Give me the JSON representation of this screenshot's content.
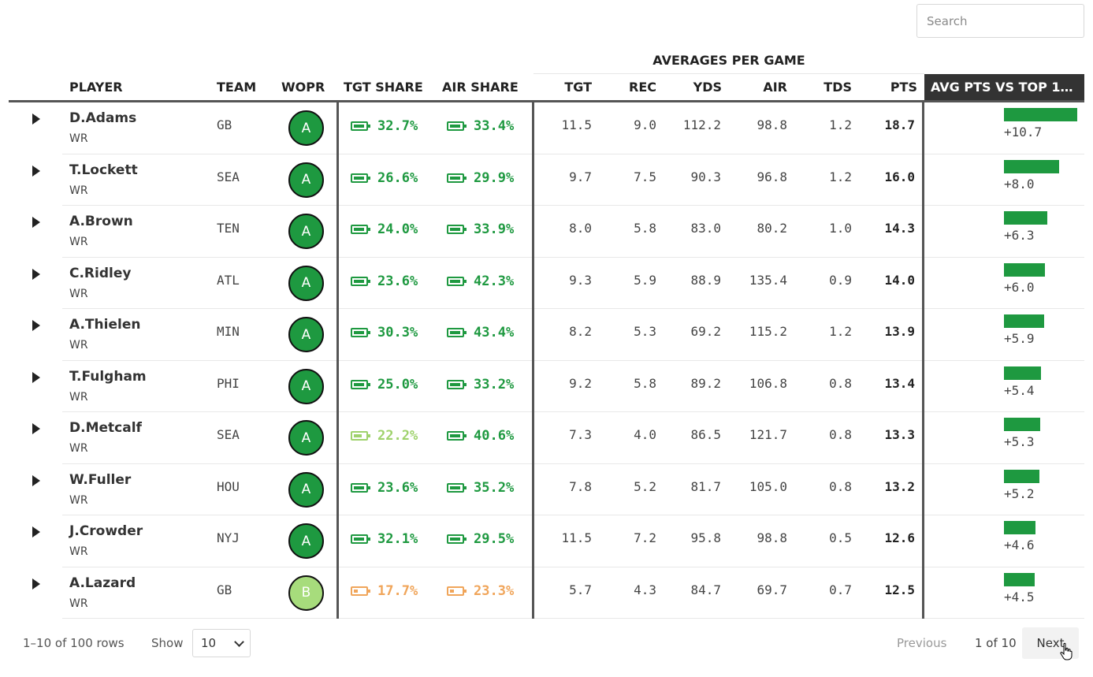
{
  "search": {
    "placeholder": "Search"
  },
  "group_header": "AVERAGES PER GAME",
  "columns": {
    "player": "PLAYER",
    "team": "TEAM",
    "wopr": "WOPR",
    "tgt_share": "TGT SHARE",
    "air_share": "AIR SHARE",
    "tgt": "TGT",
    "rec": "REC",
    "yds": "YDS",
    "air": "AIR",
    "tds": "TDS",
    "pts": "PTS",
    "avg_vs_top": "AVG PTS VS TOP 1…"
  },
  "colors": {
    "green": "#1e9940",
    "light_green": "#9fd26c",
    "orange": "#f0a55a",
    "grade_a": "#1e9940",
    "grade_b": "#a7dc7c"
  },
  "rows": [
    {
      "name": "D.Adams",
      "pos": "WR",
      "team": "GB",
      "grade": "A",
      "tgt_share": "32.7%",
      "tgt_level": 0.95,
      "tgt_color": "green",
      "air_share": "33.4%",
      "air_level": 0.95,
      "air_color": "green",
      "tgt": "11.5",
      "rec": "9.0",
      "yds": "112.2",
      "air": "98.8",
      "tds": "1.2",
      "pts": "18.7",
      "diff": 10.7,
      "diff_label": "+10.7"
    },
    {
      "name": "T.Lockett",
      "pos": "WR",
      "team": "SEA",
      "grade": "A",
      "tgt_share": "26.6%",
      "tgt_level": 0.95,
      "tgt_color": "green",
      "air_share": "29.9%",
      "air_level": 0.95,
      "air_color": "green",
      "tgt": "9.7",
      "rec": "7.5",
      "yds": "90.3",
      "air": "96.8",
      "tds": "1.2",
      "pts": "16.0",
      "diff": 8.0,
      "diff_label": "+8.0"
    },
    {
      "name": "A.Brown",
      "pos": "WR",
      "team": "TEN",
      "grade": "A",
      "tgt_share": "24.0%",
      "tgt_level": 0.95,
      "tgt_color": "green",
      "air_share": "33.9%",
      "air_level": 0.95,
      "air_color": "green",
      "tgt": "8.0",
      "rec": "5.8",
      "yds": "83.0",
      "air": "80.2",
      "tds": "1.0",
      "pts": "14.3",
      "diff": 6.3,
      "diff_label": "+6.3"
    },
    {
      "name": "C.Ridley",
      "pos": "WR",
      "team": "ATL",
      "grade": "A",
      "tgt_share": "23.6%",
      "tgt_level": 0.95,
      "tgt_color": "green",
      "air_share": "42.3%",
      "air_level": 0.95,
      "air_color": "green",
      "tgt": "9.3",
      "rec": "5.9",
      "yds": "88.9",
      "air": "135.4",
      "tds": "0.9",
      "pts": "14.0",
      "diff": 6.0,
      "diff_label": "+6.0"
    },
    {
      "name": "A.Thielen",
      "pos": "WR",
      "team": "MIN",
      "grade": "A",
      "tgt_share": "30.3%",
      "tgt_level": 0.95,
      "tgt_color": "green",
      "air_share": "43.4%",
      "air_level": 0.95,
      "air_color": "green",
      "tgt": "8.2",
      "rec": "5.3",
      "yds": "69.2",
      "air": "115.2",
      "tds": "1.2",
      "pts": "13.9",
      "diff": 5.9,
      "diff_label": "+5.9"
    },
    {
      "name": "T.Fulgham",
      "pos": "WR",
      "team": "PHI",
      "grade": "A",
      "tgt_share": "25.0%",
      "tgt_level": 0.95,
      "tgt_color": "green",
      "air_share": "33.2%",
      "air_level": 0.95,
      "air_color": "green",
      "tgt": "9.2",
      "rec": "5.8",
      "yds": "89.2",
      "air": "106.8",
      "tds": "0.8",
      "pts": "13.4",
      "diff": 5.4,
      "diff_label": "+5.4"
    },
    {
      "name": "D.Metcalf",
      "pos": "WR",
      "team": "SEA",
      "grade": "A",
      "tgt_share": "22.2%",
      "tgt_level": 0.7,
      "tgt_color": "light_green",
      "air_share": "40.6%",
      "air_level": 0.95,
      "air_color": "green",
      "tgt": "7.3",
      "rec": "4.0",
      "yds": "86.5",
      "air": "121.7",
      "tds": "0.8",
      "pts": "13.3",
      "diff": 5.3,
      "diff_label": "+5.3"
    },
    {
      "name": "W.Fuller",
      "pos": "WR",
      "team": "HOU",
      "grade": "A",
      "tgt_share": "23.6%",
      "tgt_level": 0.95,
      "tgt_color": "green",
      "air_share": "35.2%",
      "air_level": 0.95,
      "air_color": "green",
      "tgt": "7.8",
      "rec": "5.2",
      "yds": "81.7",
      "air": "105.0",
      "tds": "0.8",
      "pts": "13.2",
      "diff": 5.2,
      "diff_label": "+5.2"
    },
    {
      "name": "J.Crowder",
      "pos": "WR",
      "team": "NYJ",
      "grade": "A",
      "tgt_share": "32.1%",
      "tgt_level": 0.95,
      "tgt_color": "green",
      "air_share": "29.5%",
      "air_level": 0.95,
      "air_color": "green",
      "tgt": "11.5",
      "rec": "7.2",
      "yds": "95.8",
      "air": "98.8",
      "tds": "0.5",
      "pts": "12.6",
      "diff": 4.6,
      "diff_label": "+4.6"
    },
    {
      "name": "A.Lazard",
      "pos": "WR",
      "team": "GB",
      "grade": "B",
      "tgt_share": "17.7%",
      "tgt_level": 0.35,
      "tgt_color": "orange",
      "air_share": "23.3%",
      "air_level": 0.35,
      "air_color": "orange",
      "tgt": "5.7",
      "rec": "4.3",
      "yds": "84.7",
      "air": "69.7",
      "tds": "0.7",
      "pts": "12.5",
      "diff": 4.5,
      "diff_label": "+4.5"
    }
  ],
  "footer": {
    "row_info": "1–10 of 100 rows",
    "show_label": "Show",
    "page_size": "10",
    "previous": "Previous",
    "page_info": "1 of 10",
    "next": "Next"
  }
}
